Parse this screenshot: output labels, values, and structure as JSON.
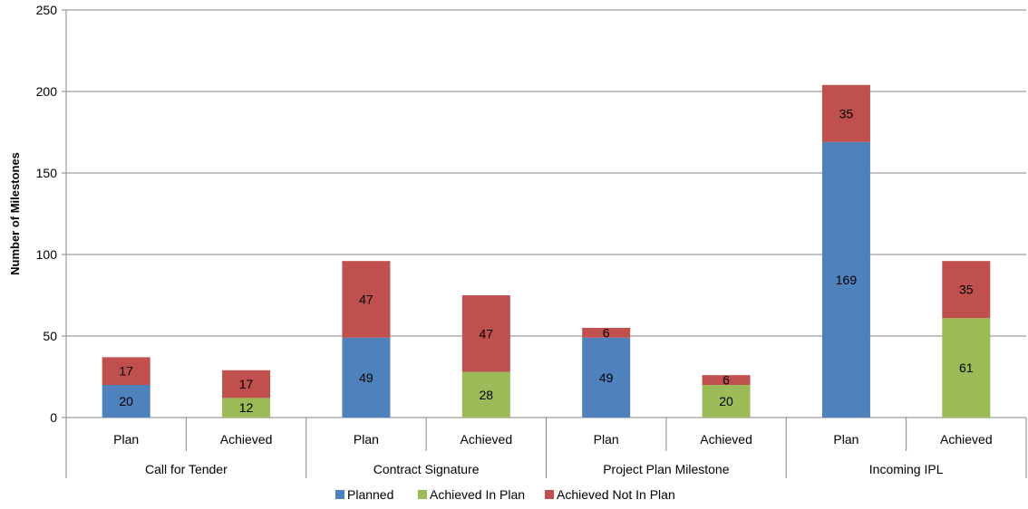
{
  "chart_data": {
    "type": "bar",
    "stacked": true,
    "ylabel": "Number of Milestones",
    "ylim": [
      0,
      250
    ],
    "yticks": [
      0,
      50,
      100,
      150,
      200,
      250
    ],
    "grid": true,
    "legend_position": "bottom",
    "groups": [
      "Call for Tender",
      "Contract Signature",
      "Project Plan Milestone",
      "Incoming IPL"
    ],
    "subcategories": [
      "Plan",
      "Achieved"
    ],
    "categories": [
      "Call for Tender / Plan",
      "Call for Tender / Achieved",
      "Contract Signature / Plan",
      "Contract Signature / Achieved",
      "Project Plan Milestone / Plan",
      "Project Plan Milestone / Achieved",
      "Incoming IPL / Plan",
      "Incoming IPL / Achieved"
    ],
    "series": [
      {
        "name": "Planned",
        "color": "#4F81BD",
        "values": [
          20,
          0,
          49,
          0,
          49,
          0,
          169,
          0
        ]
      },
      {
        "name": "Achieved In Plan",
        "color": "#9BBB59",
        "values": [
          0,
          12,
          0,
          28,
          0,
          20,
          0,
          61
        ]
      },
      {
        "name": "Achieved Not In Plan",
        "color": "#C0504D",
        "values": [
          17,
          17,
          47,
          47,
          6,
          6,
          35,
          35
        ]
      }
    ]
  }
}
